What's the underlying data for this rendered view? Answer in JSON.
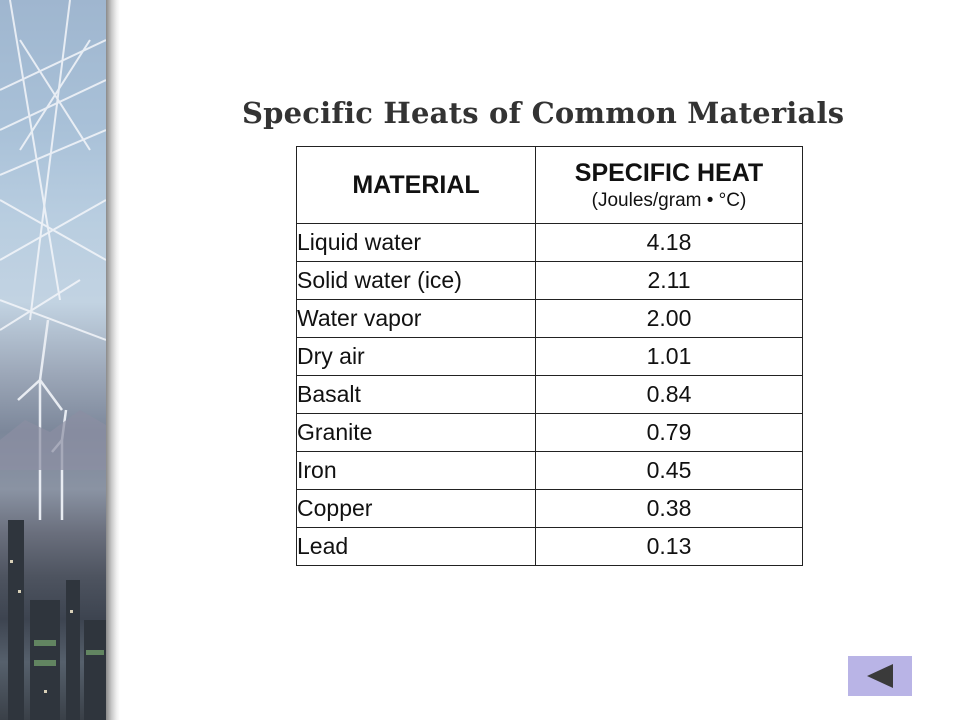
{
  "slide": {
    "title": "Specific Heats of Common Materials"
  },
  "table": {
    "header_material": "MATERIAL",
    "header_heat": "SPECIFIC HEAT",
    "header_heat_units": "(Joules/gram • °C)",
    "rows": [
      {
        "material": "Liquid water",
        "value": "4.18"
      },
      {
        "material": "Solid water (ice)",
        "value": "2.11"
      },
      {
        "material": "Water vapor",
        "value": "2.00"
      },
      {
        "material": "Dry air",
        "value": "1.01"
      },
      {
        "material": "Basalt",
        "value": "0.84"
      },
      {
        "material": "Granite",
        "value": "0.79"
      },
      {
        "material": "Iron",
        "value": "0.45"
      },
      {
        "material": "Copper",
        "value": "0.38"
      },
      {
        "material": "Lead",
        "value": "0.13"
      }
    ]
  },
  "navigation": {
    "back_icon": "left-triangle-icon",
    "button_color": "#b9b4e6",
    "icon_color": "#3a3a3a"
  }
}
